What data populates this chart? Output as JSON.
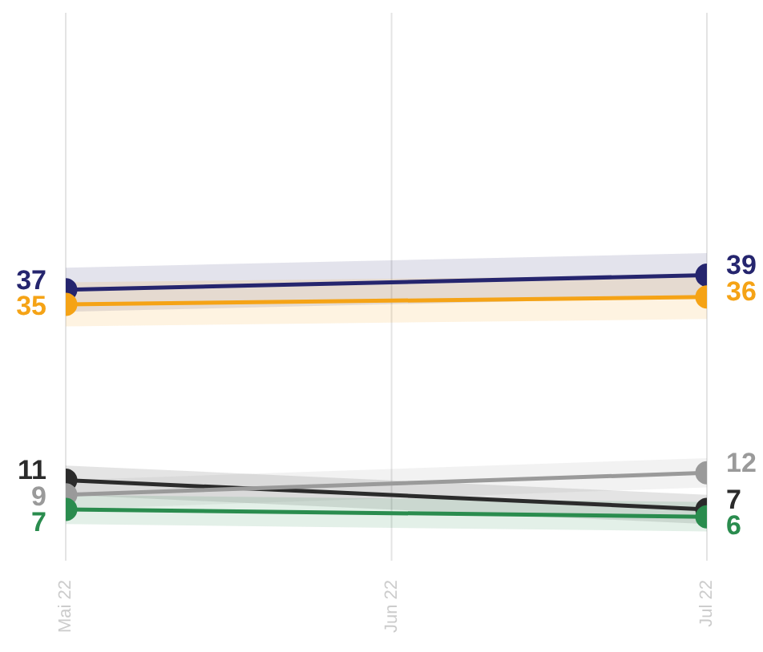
{
  "chart_data": {
    "type": "line",
    "x": [
      "2022-05",
      "2022-07"
    ],
    "xlim": [
      "2022-05",
      "2022-07"
    ],
    "xticks": [
      {
        "value": "2022-05",
        "label": "Mai 22"
      },
      {
        "value": "2022-06",
        "label": "Jun 22"
      },
      {
        "value": "2022-07",
        "label": "Jul 22"
      }
    ],
    "series": [
      {
        "color": "#25256e",
        "values": [
          37,
          39
        ],
        "lower": [
          34,
          36
        ],
        "upper": [
          40,
          42
        ]
      },
      {
        "color": "#f5a316",
        "values": [
          35,
          36
        ],
        "lower": [
          32,
          33
        ],
        "upper": [
          38,
          39
        ]
      },
      {
        "color": "#2b2b2b",
        "values": [
          11,
          7
        ],
        "lower": [
          9,
          5
        ],
        "upper": [
          13,
          9
        ]
      },
      {
        "color": "#9a9a9a",
        "values": [
          9,
          12
        ],
        "lower": [
          7,
          10
        ],
        "upper": [
          11,
          14
        ]
      },
      {
        "color": "#2a8c4e",
        "values": [
          7,
          6
        ],
        "lower": [
          5,
          4
        ],
        "upper": [
          9,
          8
        ]
      }
    ],
    "data_labels": true,
    "marker": "circle",
    "line_style": "solid",
    "grid": "x",
    "tick_labels": "x"
  }
}
